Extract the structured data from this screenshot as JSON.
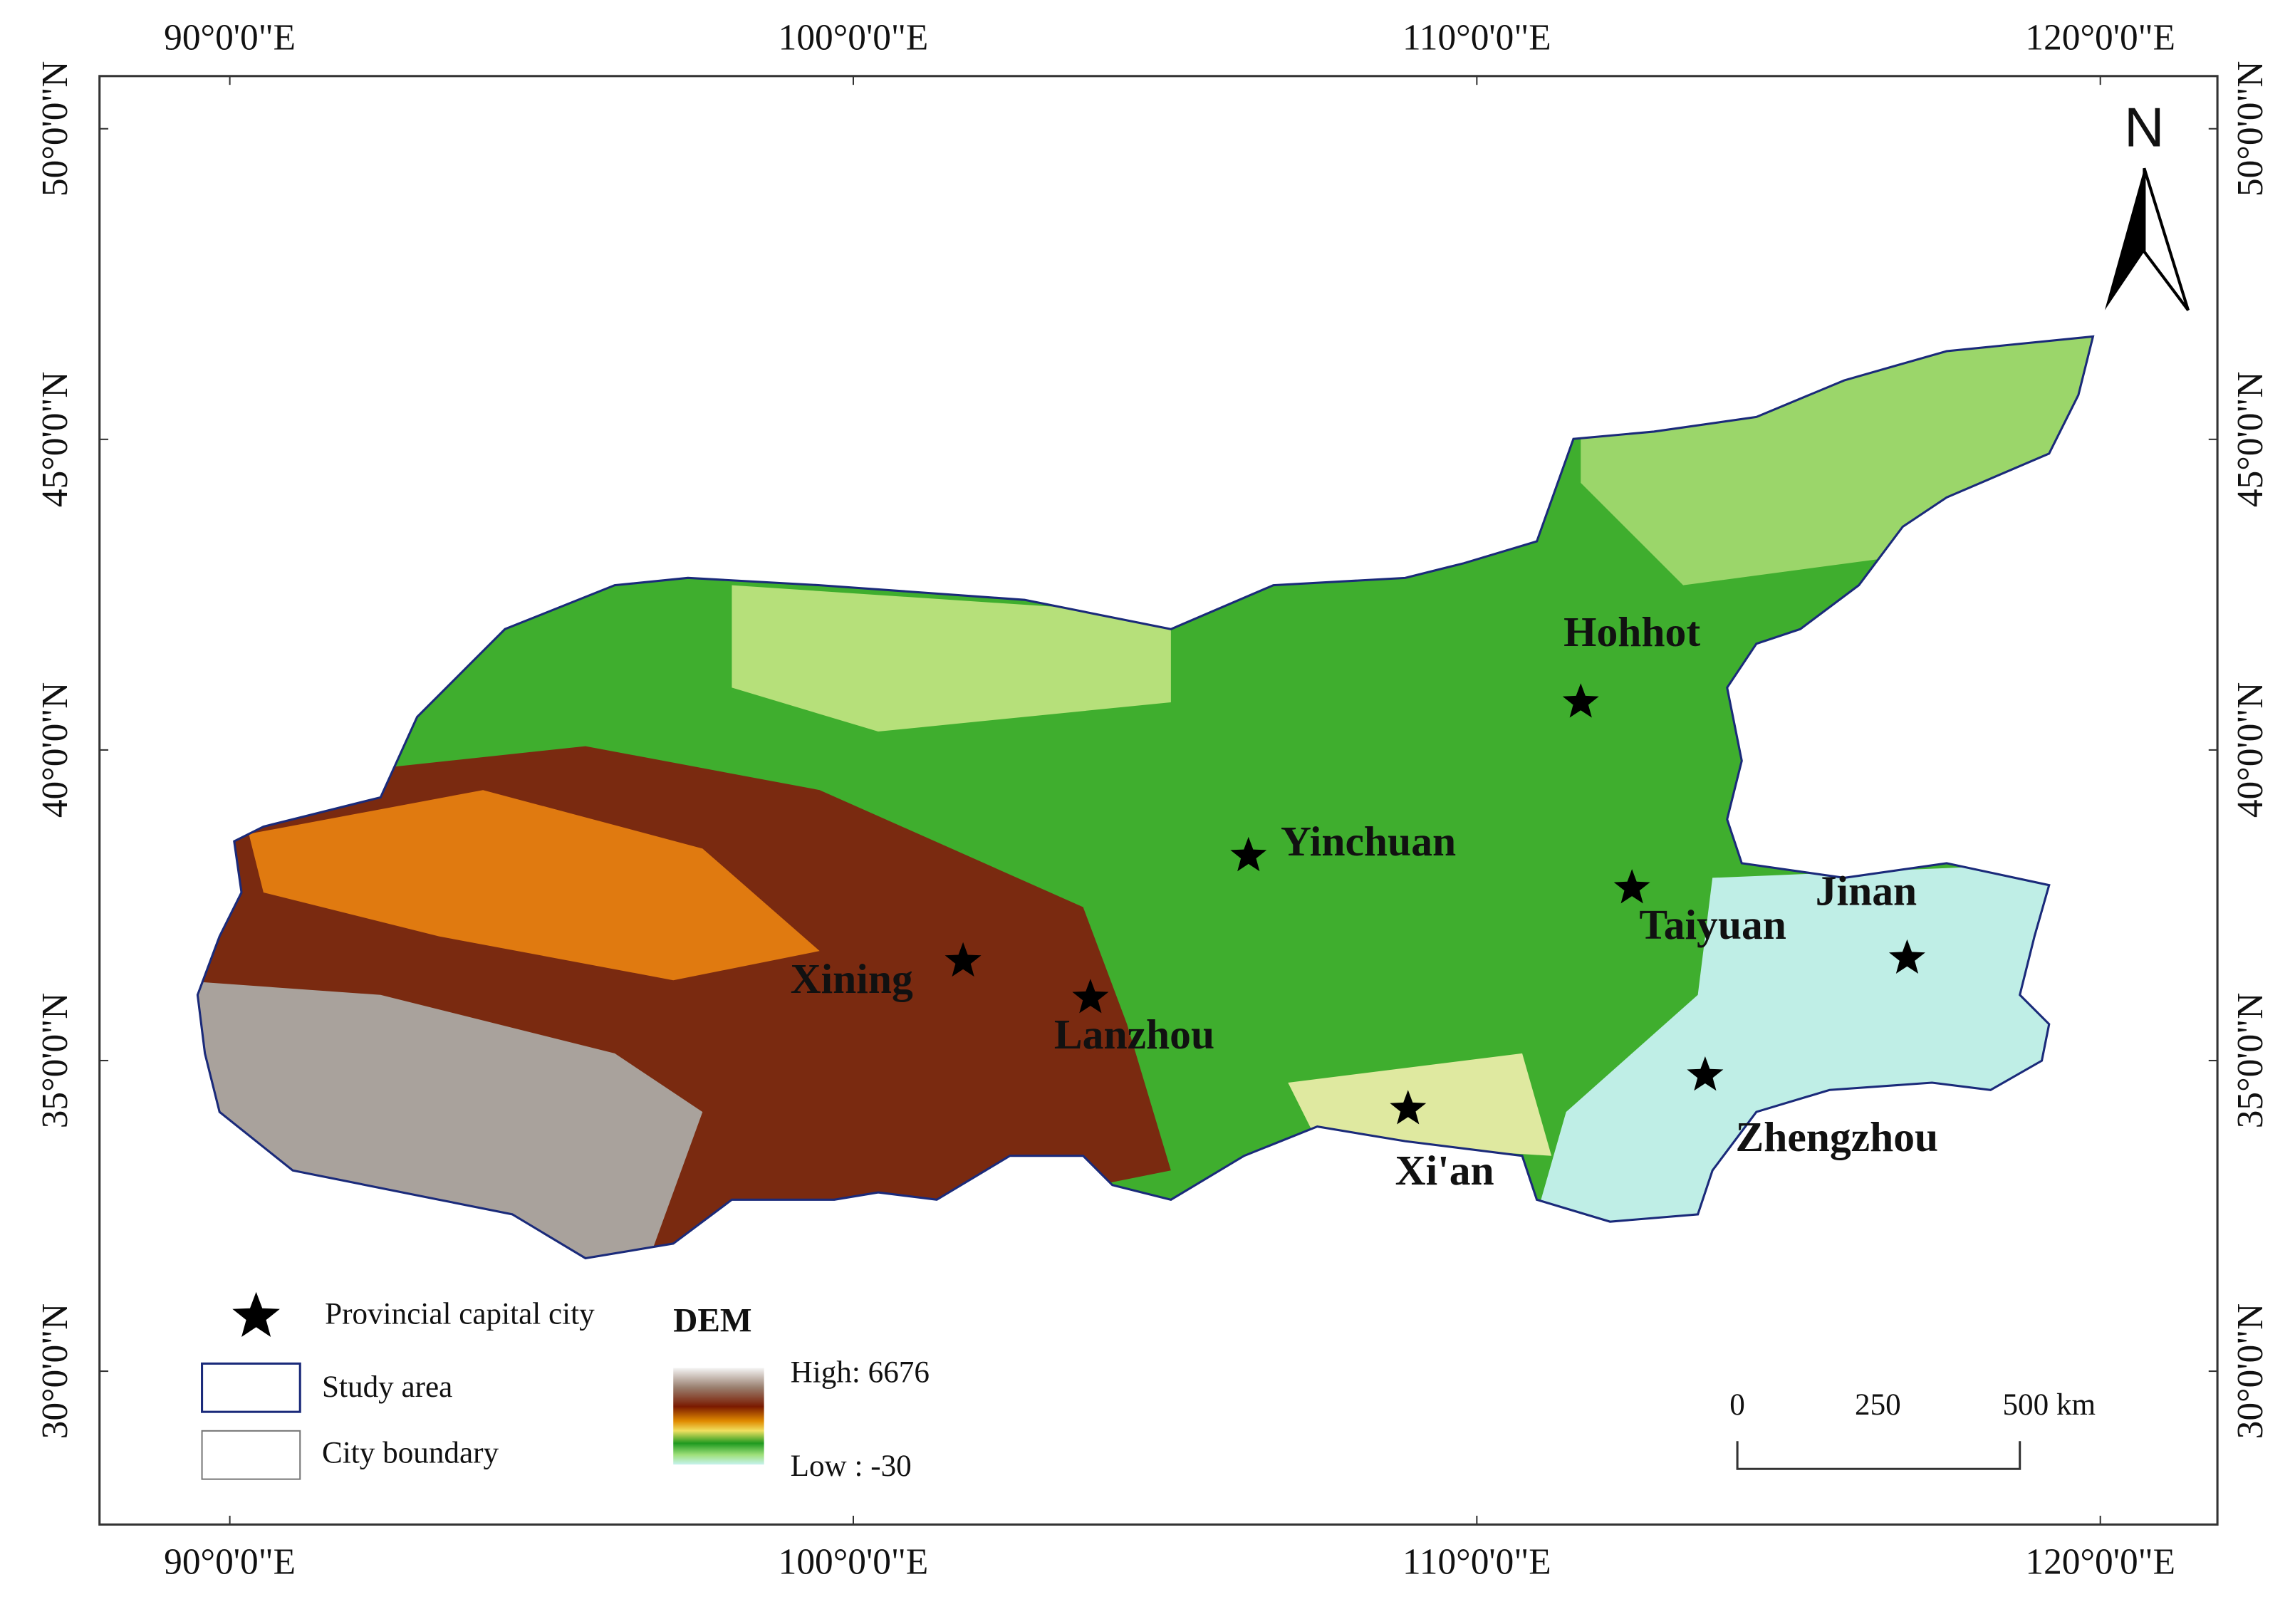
{
  "axes": {
    "longitude_labels": [
      "90°0'0\"E",
      "100°0'0\"E",
      "110°0'0\"E",
      "120°0'0\"E"
    ],
    "latitude_labels": [
      "50°0'0\"N",
      "45°0'0\"N",
      "40°0'0\"N",
      "35°0'0\"N",
      "30°0'0\"N"
    ]
  },
  "north_arrow": "N",
  "cities": [
    "Hohhot",
    "Yinchuan",
    "Taiyuan",
    "Jinan",
    "Xining",
    "Lanzhou",
    "Xi'an",
    "Zhengzhou"
  ],
  "legend": {
    "capital": "Provincial capital city",
    "study_area": "Study area",
    "city_boundary": "City boundary",
    "dem_title": "DEM",
    "high": "High: 6676",
    "low": "Low : -30"
  },
  "scale_bar": [
    "0",
    "250",
    "500 km"
  ]
}
